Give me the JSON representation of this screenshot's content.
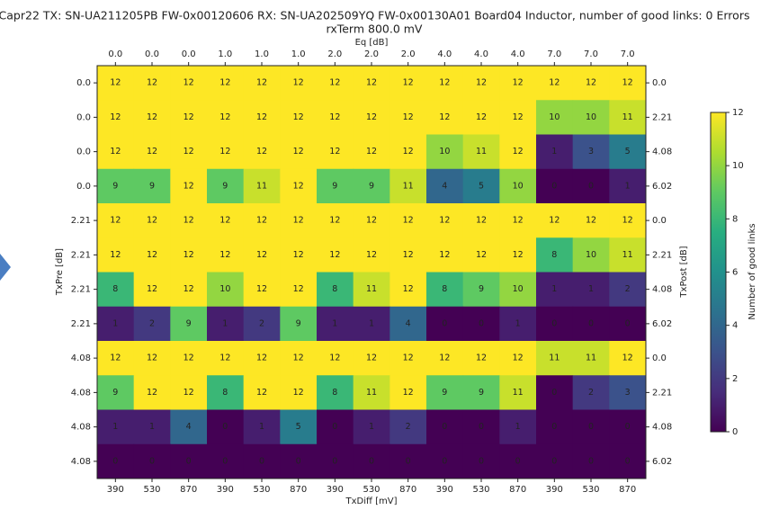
{
  "chart_data": {
    "type": "heatmap",
    "title": "Capr22 TX: SN-UA211205PB FW-0x00120606 RX: SN-UA202509YQ FW-0x00130A01 Board04 Inductor, number of good links: 0 Errors",
    "subtitle": "rxTerm 800.0 mV",
    "x_label": "TxDiff [mV]",
    "x2_label": "Eq [dB]",
    "y_label": "TxPre [dB]",
    "y2_label": "TxPost [dB]",
    "x_categories": [
      "390",
      "530",
      "870",
      "390",
      "530",
      "870",
      "390",
      "530",
      "870",
      "390",
      "530",
      "870",
      "390",
      "530",
      "870"
    ],
    "x2_categories": [
      "0.0",
      "0.0",
      "0.0",
      "1.0",
      "1.0",
      "1.0",
      "2.0",
      "2.0",
      "2.0",
      "4.0",
      "4.0",
      "4.0",
      "7.0",
      "7.0",
      "7.0"
    ],
    "y_categories": [
      "0.0",
      "0.0",
      "0.0",
      "0.0",
      "2.21",
      "2.21",
      "2.21",
      "2.21",
      "4.08",
      "4.08",
      "4.08",
      "4.08"
    ],
    "y2_categories": [
      "0.0",
      "2.21",
      "4.08",
      "6.02",
      "0.0",
      "2.21",
      "4.08",
      "6.02",
      "0.0",
      "2.21",
      "4.08",
      "6.02"
    ],
    "values": [
      [
        12,
        12,
        12,
        12,
        12,
        12,
        12,
        12,
        12,
        12,
        12,
        12,
        12,
        12,
        12
      ],
      [
        12,
        12,
        12,
        12,
        12,
        12,
        12,
        12,
        12,
        12,
        12,
        12,
        10,
        10,
        11
      ],
      [
        12,
        12,
        12,
        12,
        12,
        12,
        12,
        12,
        12,
        10,
        11,
        12,
        1,
        3,
        5
      ],
      [
        9,
        9,
        12,
        9,
        11,
        12,
        9,
        9,
        11,
        4,
        5,
        10,
        0,
        0,
        1
      ],
      [
        12,
        12,
        12,
        12,
        12,
        12,
        12,
        12,
        12,
        12,
        12,
        12,
        12,
        12,
        12
      ],
      [
        12,
        12,
        12,
        12,
        12,
        12,
        12,
        12,
        12,
        12,
        12,
        12,
        8,
        10,
        11
      ],
      [
        8,
        12,
        12,
        10,
        12,
        12,
        8,
        11,
        12,
        8,
        9,
        10,
        1,
        1,
        2
      ],
      [
        1,
        2,
        9,
        1,
        2,
        9,
        1,
        1,
        4,
        0,
        0,
        1,
        0,
        0,
        0
      ],
      [
        12,
        12,
        12,
        12,
        12,
        12,
        12,
        12,
        12,
        12,
        12,
        12,
        11,
        11,
        12
      ],
      [
        9,
        12,
        12,
        8,
        12,
        12,
        8,
        11,
        12,
        9,
        9,
        11,
        0,
        2,
        3
      ],
      [
        1,
        1,
        4,
        0,
        1,
        5,
        0,
        1,
        2,
        0,
        0,
        1,
        0,
        0,
        0
      ],
      [
        0,
        0,
        0,
        0,
        0,
        0,
        0,
        0,
        0,
        0,
        0,
        0,
        0,
        0,
        0
      ]
    ],
    "colormap": "viridis",
    "colorbar_label": "Number of good links",
    "zlim": [
      0,
      12
    ],
    "zticks": [
      0,
      2,
      4,
      6,
      8,
      10,
      12
    ]
  }
}
